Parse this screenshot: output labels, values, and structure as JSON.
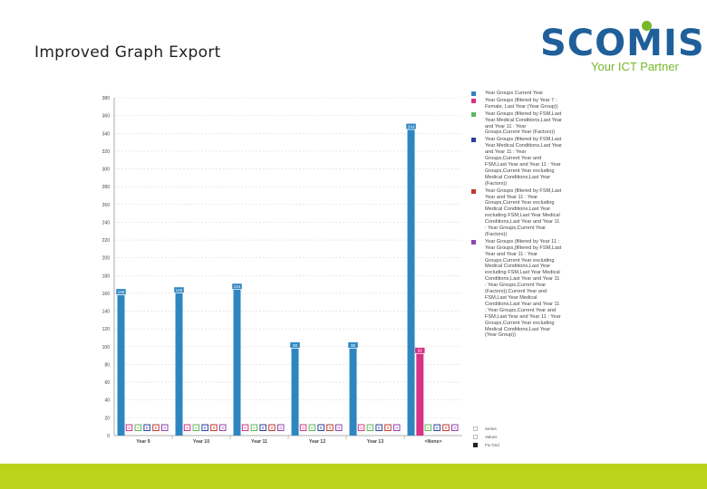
{
  "header": {
    "title": "Improved Graph Export",
    "logo_text": "SCOMIS",
    "logo_tagline": "Your ICT Partner"
  },
  "colors": {
    "title_text": "#222222",
    "logo_blue": "#1f5f9a",
    "logo_green": "#76b82a",
    "bottom_bar": "#bcd31c",
    "grid": "#d9d9d9",
    "axis_text": "#444444"
  },
  "chart_data": {
    "type": "bar",
    "title": "",
    "xlabel": "",
    "ylabel": "",
    "ylim": [
      0,
      380
    ],
    "yticks": [
      0,
      20,
      40,
      60,
      80,
      100,
      120,
      140,
      160,
      180,
      200,
      220,
      240,
      260,
      280,
      300,
      320,
      340,
      360,
      380
    ],
    "grid": true,
    "legend_position": "right",
    "categories": [
      "Year 9",
      "Year 10",
      "Year 11",
      "Year 12",
      "Year 13",
      "<None>"
    ],
    "series": [
      {
        "name": "Year Groups Current Year",
        "color": "#2e86c1",
        "values": [
          158,
          160,
          164,
          98,
          98,
          344
        ],
        "labels": [
          "158",
          "160",
          "164",
          "98",
          "98",
          "344"
        ]
      },
      {
        "name": "Year Groups (filtered by Year 7 : Female, Last Year (Year Group))",
        "color": "#d63384",
        "values": [
          0,
          0,
          0,
          0,
          0,
          92
        ],
        "labels": [
          "0",
          "0",
          "0",
          "0",
          "0",
          "92"
        ]
      },
      {
        "name": "Year Groups (filtered by FSM,Last Year Medical Conditions,Last Year and Year 11 : Year Groups,Current Year (Factors))",
        "color": "#5cb85c",
        "values": [
          0,
          0,
          0,
          0,
          0,
          0
        ],
        "labels": [
          "0",
          "0",
          "0",
          "0",
          "0",
          "0"
        ]
      },
      {
        "name": "Year Groups (filtered by FSM,Last Year Medical Conditions,Last Year and Year 11 : Year Groups,Current Year and FSM,Last Year and Year 11 : Year Groups,Current Year excluding Medical Conditions,Last Year (Factors))",
        "color": "#2c3e9e",
        "values": [
          0,
          0,
          0,
          0,
          0,
          0
        ],
        "labels": [
          "0",
          "0",
          "0",
          "0",
          "0",
          "0"
        ]
      },
      {
        "name": "Year Groups (filtered by FSM,Last Year and Year 11 : Year Groups,Current Year excluding Medical Conditions,Last Year excluding FSM,Last Year Medical Conditions,Last Year and Year 11 : Year Groups,Current Year (Factors))",
        "color": "#c0392b",
        "values": [
          0,
          0,
          0,
          0,
          0,
          0
        ],
        "labels": [
          "0",
          "0",
          "0",
          "0",
          "0",
          "0"
        ]
      },
      {
        "name": "Year Groups (filtered by Year 11 : Year Groups,(filtered by FSM,Last Year and Year 11 : Year Groups,Current Year excluding Medical Conditions,Last Year excluding FSM,Last Year Medical Conditions,Last Year and Year 11 : Year Groups,Current Year (Factors)),Current Year and FSM,Last Year Medical Conditions,Last Year and Year 11 : Year Groups,Current Year and FSM,Last Year and Year 11 : Year Groups,Current Year excluding Medical Conditions,Last Year (Year Group))",
        "color": "#8e44ad",
        "values": [
          0,
          0,
          0,
          0,
          0,
          0
        ],
        "labels": [
          "0",
          "0",
          "0",
          "0",
          "0",
          "0"
        ]
      }
    ]
  },
  "legend_extras": [
    {
      "label": "Series",
      "filled": false
    },
    {
      "label": "Values",
      "filled": false
    },
    {
      "label": "Fix Grid",
      "filled": true
    }
  ]
}
